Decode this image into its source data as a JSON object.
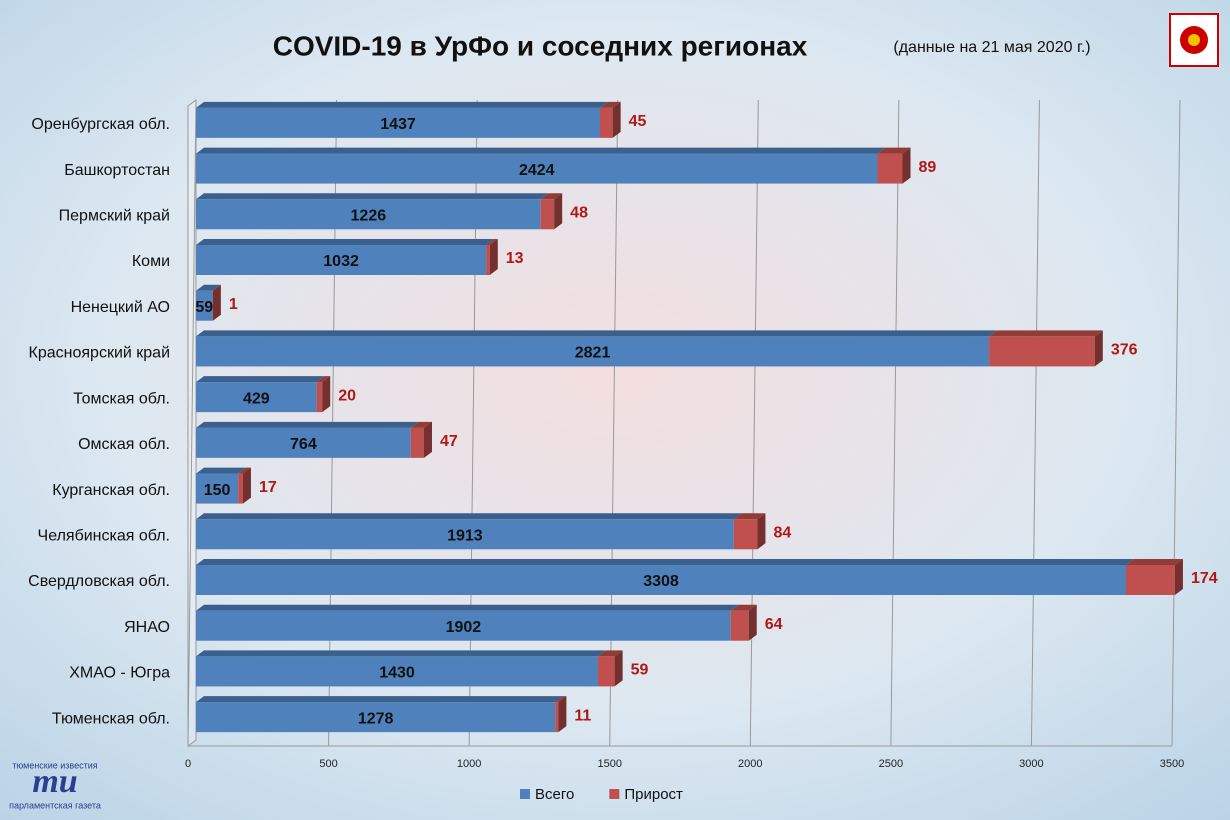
{
  "chart_data": {
    "type": "stacked-barh",
    "title": "COVID-19 в УрФо и соседних регионах",
    "subtitle": "(данные  на 21 мая 2020 г.)",
    "categories": [
      "Оренбургская обл.",
      "Башкортостан",
      "Пермский край",
      "Коми",
      "Ненецкий АО",
      "Красноярский край",
      "Томская обл.",
      "Омская обл.",
      "Курганская обл.",
      "Челябинская обл.",
      "Свердловская обл.",
      "ЯНАО",
      "ХМАО - Югра",
      "Тюменская обл."
    ],
    "series": [
      {
        "name": "Всего",
        "color": "#4f81bd",
        "values": [
          1437,
          2424,
          1226,
          1032,
          59,
          2821,
          429,
          764,
          150,
          1913,
          3308,
          1902,
          1430,
          1278
        ]
      },
      {
        "name": "Прирост",
        "color": "#c0504d",
        "values": [
          45,
          89,
          48,
          13,
          1,
          376,
          20,
          47,
          17,
          84,
          174,
          64,
          59,
          11
        ]
      }
    ],
    "xlim": [
      0,
      3500
    ],
    "xticks": [
      0,
      500,
      1000,
      1500,
      2000,
      2500,
      3000,
      3500
    ],
    "grid": true,
    "legend": "bottom",
    "logo": {
      "top": "тюменские известия",
      "mark": "ти",
      "bottom": "парламентская газета"
    }
  }
}
